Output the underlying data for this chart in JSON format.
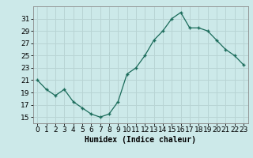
{
  "x": [
    0,
    1,
    2,
    3,
    4,
    5,
    6,
    7,
    8,
    9,
    10,
    11,
    12,
    13,
    14,
    15,
    16,
    17,
    18,
    19,
    20,
    21,
    22,
    23
  ],
  "y": [
    21,
    19.5,
    18.5,
    19.5,
    17.5,
    16.5,
    15.5,
    15,
    15.5,
    17.5,
    22,
    23,
    25,
    27.5,
    29,
    31,
    32,
    29.5,
    29.5,
    29,
    27.5,
    26,
    25,
    23.5
  ],
  "line_color": "#1a6b5a",
  "marker": "+",
  "bg_color": "#cce9e9",
  "grid_color": "#b8d4d4",
  "xlabel": "Humidex (Indice chaleur)",
  "xlim": [
    -0.5,
    23.5
  ],
  "ylim": [
    14,
    33
  ],
  "yticks": [
    15,
    17,
    19,
    21,
    23,
    25,
    27,
    29,
    31
  ],
  "xticks": [
    0,
    1,
    2,
    3,
    4,
    5,
    6,
    7,
    8,
    9,
    10,
    11,
    12,
    13,
    14,
    15,
    16,
    17,
    18,
    19,
    20,
    21,
    22,
    23
  ],
  "label_fontsize": 7,
  "tick_fontsize": 6.5
}
